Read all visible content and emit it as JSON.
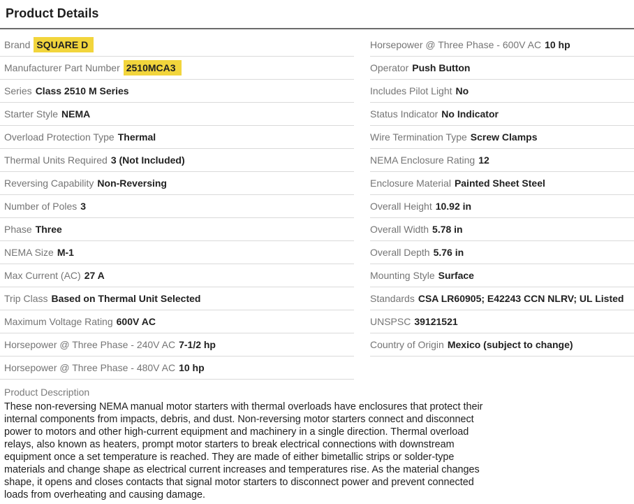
{
  "page": {
    "title": "Product Details"
  },
  "colors": {
    "highlight_yellow": "#f2d53c",
    "label_gray": "#757575",
    "value_black": "#212121"
  },
  "specs": {
    "left": [
      {
        "label": "Brand",
        "value": "SQUARE D",
        "highlight": true
      },
      {
        "label": "Manufacturer Part Number",
        "value": "2510MCA3",
        "highlight": true
      },
      {
        "label": "Series",
        "value": "Class 2510 M Series"
      },
      {
        "label": "Starter Style",
        "value": "NEMA"
      },
      {
        "label": "Overload Protection Type",
        "value": "Thermal"
      },
      {
        "label": "Thermal Units Required",
        "value": "3 (Not Included)"
      },
      {
        "label": "Reversing Capability",
        "value": "Non-Reversing"
      },
      {
        "label": "Number of Poles",
        "value": "3"
      },
      {
        "label": "Phase",
        "value": "Three"
      },
      {
        "label": "NEMA Size",
        "value": "M-1"
      },
      {
        "label": "Max Current (AC)",
        "value": "27 A"
      },
      {
        "label": "Trip Class",
        "value": "Based on Thermal Unit Selected"
      },
      {
        "label": "Maximum Voltage Rating",
        "value": "600V AC"
      },
      {
        "label": "Horsepower @ Three Phase - 240V AC",
        "value": "7-1/2 hp"
      },
      {
        "label": "Horsepower @ Three Phase - 480V AC",
        "value": "10 hp"
      }
    ],
    "right": [
      {
        "label": "Horsepower @ Three Phase - 600V AC",
        "value": "10 hp"
      },
      {
        "label": "Operator",
        "value": "Push Button"
      },
      {
        "label": "Includes Pilot Light",
        "value": "No"
      },
      {
        "label": "Status Indicator",
        "value": "No Indicator"
      },
      {
        "label": "Wire Termination Type",
        "value": "Screw Clamps"
      },
      {
        "label": "NEMA Enclosure Rating",
        "value": "12"
      },
      {
        "label": "Enclosure Material",
        "value": "Painted Sheet Steel"
      },
      {
        "label": "Overall Height",
        "value": "10.92 in"
      },
      {
        "label": "Overall Width",
        "value": "5.78 in"
      },
      {
        "label": "Overall Depth",
        "value": "5.76 in"
      },
      {
        "label": "Mounting Style",
        "value": "Surface"
      },
      {
        "label": "Standards",
        "value": "CSA LR60905; E42243 CCN NLRV; UL Listed"
      },
      {
        "label": "UNSPSC",
        "value": "39121521"
      },
      {
        "label": "Country of Origin",
        "value": "Mexico (subject to change)"
      }
    ]
  },
  "description": {
    "label": "Product Description",
    "text": "These non-reversing NEMA manual motor starters with thermal overloads have enclosures that protect their internal components from impacts, debris, and dust. Non-reversing motor starters connect and disconnect power to motors and other high-current equipment and machinery in a single direction. Thermal overload relays, also known as heaters, prompt motor starters to break electrical connections with downstream equipment once a set temperature is reached. They are made of either bimetallic strips or solder-type materials and change shape as electrical current increases and temperatures rise. As the material changes shape, it opens and closes contacts that signal motor starters to disconnect power and prevent connected loads from overheating and causing damage."
  }
}
